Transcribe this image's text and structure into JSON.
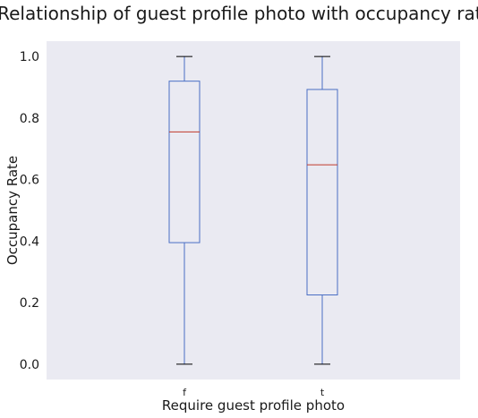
{
  "chart_data": {
    "type": "box",
    "title": "Relationship of guest profile photo with occupancy rate",
    "xlabel": "Require guest profile photo",
    "ylabel": "Occupancy Rate",
    "ylim": [
      -0.05,
      1.05
    ],
    "yticks": [
      0.0,
      0.2,
      0.4,
      0.6,
      0.8,
      1.0
    ],
    "ytick_labels": [
      "0.0",
      "0.2",
      "0.4",
      "0.6",
      "0.8",
      "1.0"
    ],
    "grid": false,
    "categories": [
      "f",
      "t"
    ],
    "boxes": [
      {
        "category": "f",
        "whisker_low": 0.0,
        "q1": 0.395,
        "median": 0.755,
        "q3": 0.92,
        "whisker_high": 1.0
      },
      {
        "category": "t",
        "whisker_low": 0.0,
        "q1": 0.225,
        "median": 0.648,
        "q3": 0.893,
        "whisker_high": 1.0
      }
    ],
    "colors": {
      "background": "#eaeaf2",
      "box": "#4a6fc4",
      "median": "#c0392b",
      "cap": "#000000"
    }
  }
}
